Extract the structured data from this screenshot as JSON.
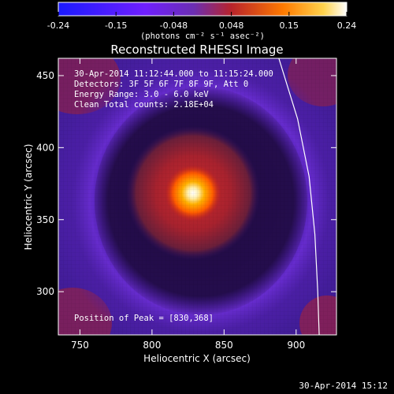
{
  "chart_data": {
    "type": "heatmap",
    "title": "Reconstructed RHESSI Image",
    "xlabel": "Heliocentric X (arcsec)",
    "ylabel": "Heliocentric Y (arcsec)",
    "xlim": [
      735,
      928
    ],
    "ylim": [
      270,
      462
    ],
    "x_ticks": [
      750,
      800,
      850,
      900
    ],
    "y_ticks": [
      300,
      350,
      400,
      450
    ],
    "colorbar": {
      "range": [
        -0.24,
        0.24
      ],
      "ticks": [
        "-0.24",
        "-0.15",
        "-0.048",
        "0.048",
        "0.15",
        "0.24"
      ],
      "units": "(photons cm⁻² s⁻¹ asec⁻²)"
    },
    "annotations": [
      "30-Apr-2014 11:12:44.000 to 11:15:24.000",
      "Detectors: 3F 5F 6F 7F 8F 9F, Att 0",
      "Energy Range: 3.0 - 6.0 keV",
      "Clean     Total counts: 2.18E+04"
    ],
    "peak_label": "Position of Peak = [830,368]",
    "peak": {
      "x": 830,
      "y": 368,
      "value": 0.24
    },
    "footer": "30-Apr-2014 15:12",
    "limb_curve": [
      [
        888,
        462
      ],
      [
        901,
        420
      ],
      [
        909,
        380
      ],
      [
        913,
        340
      ],
      [
        915,
        300
      ],
      [
        916,
        270
      ]
    ],
    "grid": false,
    "colors": {
      "background": "#000000",
      "axes": "#ffffff",
      "limb": "#ffffff",
      "colormap": [
        "#1a1aff",
        "#6f1fff",
        "#6b2eb2",
        "#b8232b",
        "#ff7a00",
        "#ffd34d",
        "#ffffff"
      ]
    }
  }
}
